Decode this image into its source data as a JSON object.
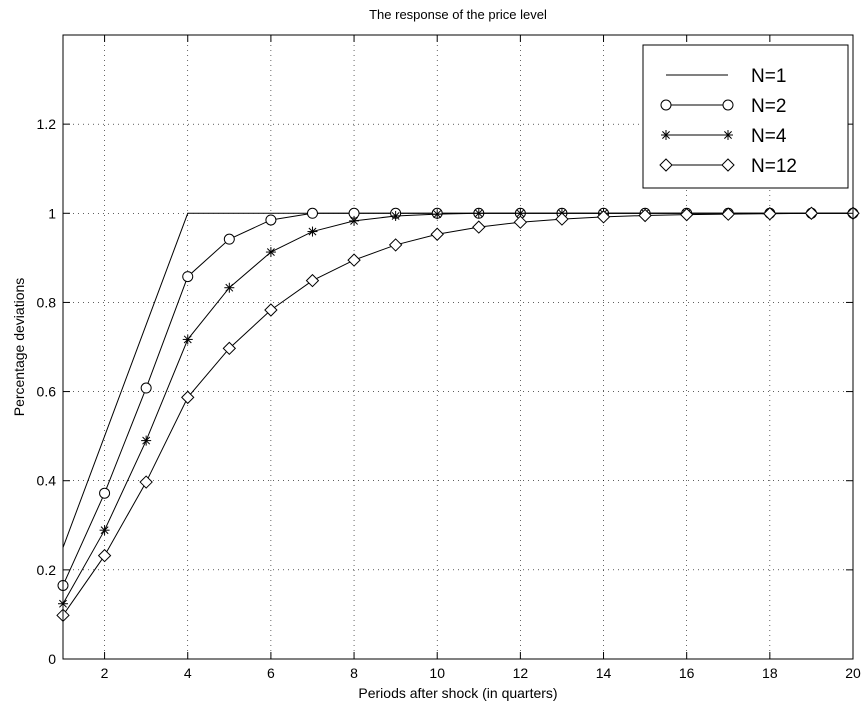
{
  "chart_data": {
    "type": "line",
    "title": "The response of the price level",
    "xlabel": "Periods after shock (in quarters)",
    "ylabel": "Percentage deviations",
    "xlim": [
      1,
      20
    ],
    "ylim": [
      0,
      1.4
    ],
    "xticks": [
      2,
      4,
      6,
      8,
      10,
      12,
      14,
      16,
      18,
      20
    ],
    "yticks": [
      0,
      0.2,
      0.4,
      0.6,
      0.8,
      1,
      1.2
    ],
    "xtick_labels": [
      "2",
      "4",
      "6",
      "8",
      "10",
      "12",
      "14",
      "16",
      "18",
      "20"
    ],
    "ytick_labels": [
      "0",
      "0.2",
      "0.4",
      "0.6",
      "0.8",
      "1",
      "1.2"
    ],
    "grid": true,
    "legend_position": "top-right",
    "x": [
      1,
      2,
      3,
      4,
      5,
      6,
      7,
      8,
      9,
      10,
      11,
      12,
      13,
      14,
      15,
      16,
      17,
      18,
      19,
      20
    ],
    "series": [
      {
        "name": "N=1",
        "marker": "none",
        "values": [
          0.25,
          0.5,
          0.75,
          1,
          1,
          1,
          1,
          1,
          1,
          1,
          1,
          1,
          1,
          1,
          1,
          1,
          1,
          1,
          1,
          1
        ]
      },
      {
        "name": "N=2",
        "marker": "circle",
        "values": [
          0.165,
          0.372,
          0.608,
          0.858,
          0.942,
          0.985,
          1,
          1,
          1,
          1,
          1,
          1,
          1,
          1,
          1,
          1,
          1,
          1,
          1,
          1
        ]
      },
      {
        "name": "N=4",
        "marker": "asterisk",
        "values": [
          0.124,
          0.289,
          0.49,
          0.717,
          0.833,
          0.913,
          0.959,
          0.983,
          0.994,
          0.998,
          1,
          1,
          1,
          1,
          1,
          1,
          1,
          1,
          1,
          1
        ]
      },
      {
        "name": "N=12",
        "marker": "diamond",
        "values": [
          0.098,
          0.232,
          0.397,
          0.587,
          0.697,
          0.783,
          0.849,
          0.895,
          0.929,
          0.953,
          0.969,
          0.98,
          0.987,
          0.992,
          0.995,
          0.997,
          0.998,
          0.999,
          1,
          1
        ]
      }
    ]
  }
}
